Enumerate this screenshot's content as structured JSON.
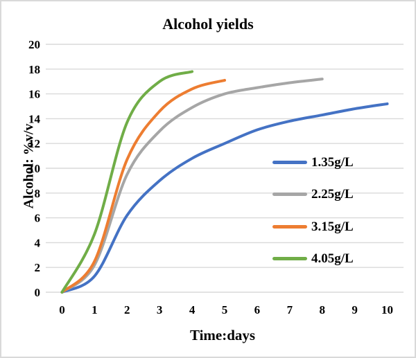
{
  "window": {
    "background": "#FFFFFF",
    "border_color": "#D9D9D9"
  },
  "chart_data": {
    "type": "line",
    "title": "Alcohol yields",
    "xlabel": "Time:days",
    "ylabel": "Alcohol: %v/v",
    "x_ticks": [
      0,
      1,
      2,
      3,
      4,
      5,
      6,
      7,
      8,
      9,
      10
    ],
    "y_ticks": [
      0,
      2,
      4,
      6,
      8,
      10,
      12,
      14,
      16,
      18,
      20
    ],
    "xlim": [
      0,
      10
    ],
    "ylim": [
      0,
      20
    ],
    "grid": "horizontal-only",
    "gridline_color": "#D9D9D9",
    "text_color": "#000000",
    "legend_position": "inside-right",
    "smooth_lines": true,
    "series": [
      {
        "name": "1.35g/L",
        "color": "#4472C4",
        "x": [
          0,
          1,
          2,
          3,
          4,
          5,
          6,
          7,
          8,
          9,
          10
        ],
        "y": [
          0,
          1.3,
          6.2,
          9.0,
          10.8,
          12.0,
          13.1,
          13.8,
          14.3,
          14.8,
          15.2
        ]
      },
      {
        "name": "2.25g/L",
        "color": "#A6A6A6",
        "x": [
          0,
          1,
          2,
          3,
          4,
          5,
          6,
          7,
          8
        ],
        "y": [
          0,
          2.2,
          9.5,
          13.0,
          14.9,
          16.0,
          16.5,
          16.9,
          17.2
        ]
      },
      {
        "name": "3.15g/L",
        "color": "#ED7D31",
        "x": [
          0,
          1,
          2,
          3,
          4,
          5
        ],
        "y": [
          0,
          2.5,
          10.7,
          14.6,
          16.4,
          17.1
        ]
      },
      {
        "name": "4.05g/L",
        "color": "#70AD47",
        "x": [
          0,
          1,
          2,
          3,
          4
        ],
        "y": [
          0,
          4.7,
          13.7,
          17.0,
          17.8
        ]
      }
    ]
  }
}
